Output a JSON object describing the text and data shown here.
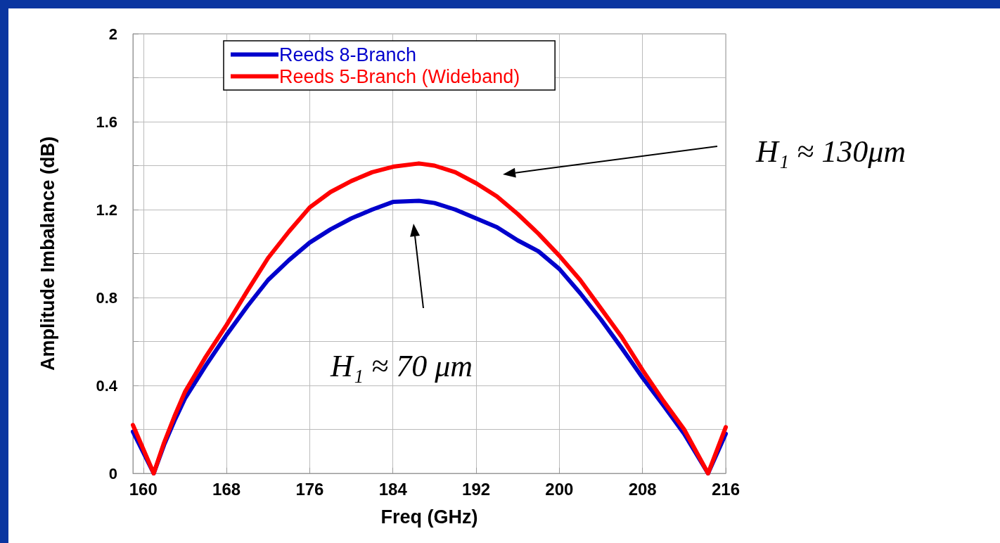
{
  "chart_data": {
    "type": "line",
    "xlabel": "Freq (GHz)",
    "ylabel": "Amplitude Imbalance (dB)",
    "xlim": [
      159,
      216
    ],
    "xticks": [
      160,
      168,
      176,
      184,
      192,
      200,
      208,
      216
    ],
    "ylim": [
      0,
      2
    ],
    "yticks": [
      0,
      {
        "value": 0.2,
        "label": null
      },
      0.4,
      {
        "value": 0.6,
        "label": null
      },
      0.8,
      {
        "value": 1.0,
        "label": null
      },
      1.2,
      {
        "value": 1.4,
        "label": null
      },
      1.6,
      {
        "value": 1.8,
        "label": null
      },
      2
    ],
    "x": [
      159,
      161,
      162,
      163,
      164,
      166,
      168,
      170,
      172,
      174,
      176,
      178,
      180,
      182,
      184,
      186.5,
      188,
      190,
      192,
      194,
      196,
      198,
      200,
      202,
      204,
      206,
      208,
      210,
      212,
      214.3,
      216
    ],
    "series": [
      {
        "name": "Reeds 8-Branch",
        "color": "#0000cc",
        "values": [
          0.19,
          0,
          0.13,
          0.24,
          0.34,
          0.49,
          0.63,
          0.76,
          0.88,
          0.97,
          1.05,
          1.11,
          1.16,
          1.2,
          1.235,
          1.24,
          1.23,
          1.2,
          1.16,
          1.12,
          1.06,
          1.01,
          0.93,
          0.82,
          0.7,
          0.57,
          0.435,
          0.31,
          0.18,
          0,
          0.18
        ]
      },
      {
        "name": "Reeds 5-Branch (Wideband)",
        "color": "#ff0000",
        "values": [
          0.22,
          0,
          0.14,
          0.26,
          0.37,
          0.53,
          0.675,
          0.83,
          0.98,
          1.1,
          1.21,
          1.28,
          1.33,
          1.37,
          1.395,
          1.41,
          1.4,
          1.37,
          1.32,
          1.26,
          1.18,
          1.09,
          0.99,
          0.88,
          0.75,
          0.62,
          0.47,
          0.33,
          0.2,
          0,
          0.21
        ]
      }
    ],
    "annotations": [
      "H₁ ≈ 130μm",
      "H₁ ≈ 70 μm"
    ],
    "grid": true,
    "legend": "top left",
    "marker": "none",
    "line_style": "solid"
  }
}
